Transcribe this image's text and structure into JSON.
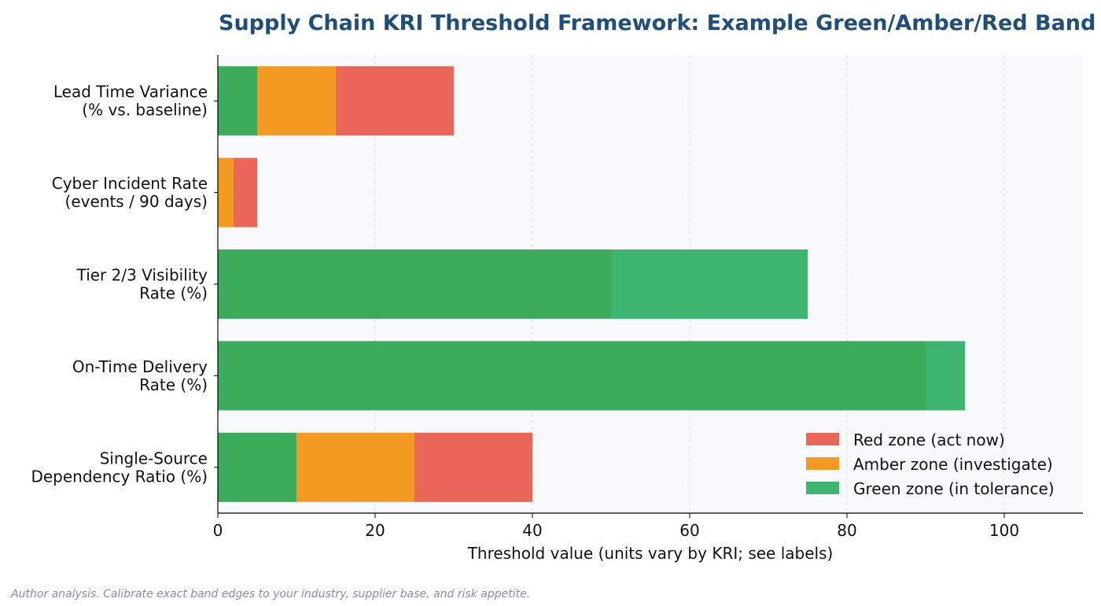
{
  "chart_data": {
    "type": "bar",
    "orientation": "horizontal",
    "stacked": true,
    "title": "Supply Chain KRI Threshold Framework: Example Green/Amber/Red Band",
    "xlabel": "Threshold value (units vary by KRI; see labels)",
    "ylabel": "",
    "xlim": [
      0,
      110
    ],
    "xticks": [
      0,
      20,
      40,
      60,
      80,
      100
    ],
    "grid": "vertical-dashed",
    "legend_position": "lower-right",
    "categories": [
      [
        "Lead Time Variance",
        "(% vs. baseline)"
      ],
      [
        "Cyber Incident Rate",
        "(events / 90 days)"
      ],
      [
        "Tier 2/3 Visibility",
        "Rate (%)"
      ],
      [
        "On-Time Delivery",
        "Rate (%)"
      ],
      [
        "Single-Source",
        "Dependency Ratio (%)"
      ]
    ],
    "bars": [
      {
        "segments": [
          {
            "start": 0,
            "end": 5,
            "color": "#3cab5a"
          },
          {
            "start": 5,
            "end": 15,
            "color": "#f29a21"
          },
          {
            "start": 15,
            "end": 30,
            "color": "#ea6658"
          }
        ]
      },
      {
        "segments": [
          {
            "start": 0,
            "end": 2,
            "color": "#f29a21"
          },
          {
            "start": 2,
            "end": 5,
            "color": "#ea6658"
          }
        ]
      },
      {
        "segments": [
          {
            "start": 0,
            "end": 50,
            "color": "#3cab5a"
          },
          {
            "start": 50,
            "end": 75,
            "color": "#3db56e"
          }
        ]
      },
      {
        "segments": [
          {
            "start": 0,
            "end": 90,
            "color": "#3cab5a"
          },
          {
            "start": 90,
            "end": 95,
            "color": "#3db56e"
          }
        ]
      },
      {
        "segments": [
          {
            "start": 0,
            "end": 10,
            "color": "#3cab5a"
          },
          {
            "start": 10,
            "end": 25,
            "color": "#f29a21"
          },
          {
            "start": 25,
            "end": 40,
            "color": "#ea6658"
          }
        ]
      }
    ],
    "legend": [
      {
        "label": "Red zone (act now)",
        "color": "#ea6658"
      },
      {
        "label": "Amber zone (investigate)",
        "color": "#f29a21"
      },
      {
        "label": "Green zone (in tolerance)",
        "color": "#3db56e"
      }
    ]
  },
  "footnote": "Author analysis. Calibrate exact band edges to your industry, supplier base, and risk appetite.",
  "colors": {
    "plot_background": "#f7f9fc",
    "title": "#1f4e79",
    "footnote": "#8a8f98"
  }
}
